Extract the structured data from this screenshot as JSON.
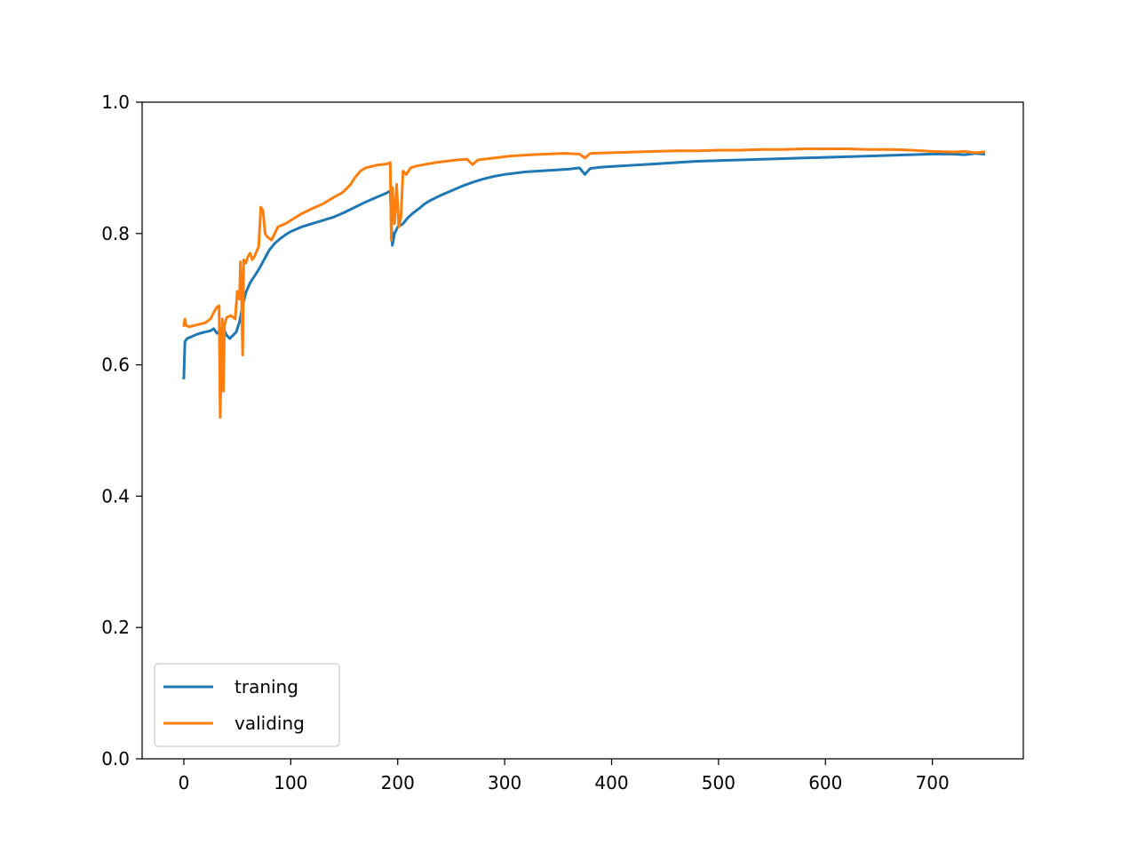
{
  "chart_data": {
    "type": "line",
    "title": "",
    "xlabel": "",
    "ylabel": "",
    "xlim": [
      -39,
      785
    ],
    "ylim": [
      0.0,
      1.0
    ],
    "x_ticks": [
      0,
      100,
      200,
      300,
      400,
      500,
      600,
      700
    ],
    "x_tick_labels": [
      "0",
      "100",
      "200",
      "300",
      "400",
      "500",
      "600",
      "700"
    ],
    "y_ticks": [
      0.0,
      0.2,
      0.4,
      0.6,
      0.8,
      1.0
    ],
    "y_tick_labels": [
      "0.0",
      "0.2",
      "0.4",
      "0.6",
      "0.8",
      "1.0"
    ],
    "grid": false,
    "legend_position": "lower-left",
    "series": [
      {
        "name": "traning",
        "color": "#1f77b4",
        "points": [
          [
            0,
            0.58
          ],
          [
            1,
            0.635
          ],
          [
            3,
            0.64
          ],
          [
            6,
            0.642
          ],
          [
            10,
            0.645
          ],
          [
            15,
            0.648
          ],
          [
            20,
            0.65
          ],
          [
            25,
            0.652
          ],
          [
            28,
            0.655
          ],
          [
            31,
            0.648
          ],
          [
            34,
            0.652
          ],
          [
            37,
            0.655
          ],
          [
            40,
            0.645
          ],
          [
            43,
            0.64
          ],
          [
            46,
            0.645
          ],
          [
            49,
            0.65
          ],
          [
            52,
            0.665
          ],
          [
            55,
            0.69
          ],
          [
            58,
            0.71
          ],
          [
            62,
            0.725
          ],
          [
            66,
            0.735
          ],
          [
            70,
            0.745
          ],
          [
            75,
            0.76
          ],
          [
            80,
            0.775
          ],
          [
            85,
            0.785
          ],
          [
            90,
            0.792
          ],
          [
            95,
            0.798
          ],
          [
            100,
            0.803
          ],
          [
            110,
            0.81
          ],
          [
            120,
            0.815
          ],
          [
            130,
            0.82
          ],
          [
            140,
            0.825
          ],
          [
            150,
            0.832
          ],
          [
            160,
            0.84
          ],
          [
            170,
            0.848
          ],
          [
            180,
            0.855
          ],
          [
            190,
            0.862
          ],
          [
            193,
            0.865
          ],
          [
            195,
            0.782
          ],
          [
            197,
            0.8
          ],
          [
            200,
            0.81
          ],
          [
            205,
            0.815
          ],
          [
            210,
            0.825
          ],
          [
            215,
            0.832
          ],
          [
            220,
            0.838
          ],
          [
            225,
            0.845
          ],
          [
            230,
            0.85
          ],
          [
            240,
            0.858
          ],
          [
            250,
            0.865
          ],
          [
            260,
            0.872
          ],
          [
            270,
            0.878
          ],
          [
            280,
            0.883
          ],
          [
            290,
            0.887
          ],
          [
            300,
            0.89
          ],
          [
            310,
            0.892
          ],
          [
            320,
            0.894
          ],
          [
            330,
            0.895
          ],
          [
            340,
            0.896
          ],
          [
            350,
            0.897
          ],
          [
            360,
            0.898
          ],
          [
            370,
            0.9
          ],
          [
            375,
            0.89
          ],
          [
            380,
            0.899
          ],
          [
            390,
            0.901
          ],
          [
            400,
            0.902
          ],
          [
            420,
            0.904
          ],
          [
            440,
            0.906
          ],
          [
            460,
            0.908
          ],
          [
            480,
            0.91
          ],
          [
            500,
            0.911
          ],
          [
            520,
            0.912
          ],
          [
            540,
            0.913
          ],
          [
            560,
            0.914
          ],
          [
            580,
            0.915
          ],
          [
            600,
            0.916
          ],
          [
            620,
            0.917
          ],
          [
            640,
            0.918
          ],
          [
            660,
            0.919
          ],
          [
            680,
            0.92
          ],
          [
            700,
            0.921
          ],
          [
            720,
            0.921
          ],
          [
            730,
            0.92
          ],
          [
            740,
            0.922
          ],
          [
            748,
            0.921
          ]
        ]
      },
      {
        "name": "validing",
        "color": "#ff7f0e",
        "points": [
          [
            0,
            0.66
          ],
          [
            1,
            0.67
          ],
          [
            2,
            0.66
          ],
          [
            5,
            0.658
          ],
          [
            10,
            0.66
          ],
          [
            15,
            0.662
          ],
          [
            20,
            0.664
          ],
          [
            25,
            0.67
          ],
          [
            28,
            0.68
          ],
          [
            31,
            0.688
          ],
          [
            33,
            0.69
          ],
          [
            34,
            0.52
          ],
          [
            35,
            0.6
          ],
          [
            36,
            0.67
          ],
          [
            37,
            0.56
          ],
          [
            38,
            0.66
          ],
          [
            40,
            0.672
          ],
          [
            44,
            0.675
          ],
          [
            48,
            0.67
          ],
          [
            50,
            0.712
          ],
          [
            52,
            0.7
          ],
          [
            53,
            0.757
          ],
          [
            54,
            0.705
          ],
          [
            55,
            0.615
          ],
          [
            56,
            0.76
          ],
          [
            58,
            0.755
          ],
          [
            60,
            0.765
          ],
          [
            62,
            0.77
          ],
          [
            64,
            0.76
          ],
          [
            66,
            0.765
          ],
          [
            70,
            0.78
          ],
          [
            72,
            0.84
          ],
          [
            74,
            0.835
          ],
          [
            76,
            0.8
          ],
          [
            78,
            0.795
          ],
          [
            82,
            0.79
          ],
          [
            85,
            0.8
          ],
          [
            88,
            0.81
          ],
          [
            95,
            0.815
          ],
          [
            100,
            0.82
          ],
          [
            110,
            0.83
          ],
          [
            120,
            0.838
          ],
          [
            130,
            0.845
          ],
          [
            140,
            0.855
          ],
          [
            148,
            0.862
          ],
          [
            152,
            0.868
          ],
          [
            156,
            0.875
          ],
          [
            160,
            0.885
          ],
          [
            165,
            0.895
          ],
          [
            170,
            0.9
          ],
          [
            180,
            0.904
          ],
          [
            190,
            0.906
          ],
          [
            193,
            0.908
          ],
          [
            194,
            0.79
          ],
          [
            195,
            0.87
          ],
          [
            197,
            0.815
          ],
          [
            199,
            0.875
          ],
          [
            201,
            0.81
          ],
          [
            203,
            0.825
          ],
          [
            205,
            0.895
          ],
          [
            208,
            0.89
          ],
          [
            212,
            0.9
          ],
          [
            218,
            0.903
          ],
          [
            225,
            0.905
          ],
          [
            235,
            0.908
          ],
          [
            245,
            0.91
          ],
          [
            255,
            0.912
          ],
          [
            265,
            0.913
          ],
          [
            270,
            0.905
          ],
          [
            275,
            0.912
          ],
          [
            285,
            0.914
          ],
          [
            295,
            0.916
          ],
          [
            305,
            0.918
          ],
          [
            315,
            0.919
          ],
          [
            325,
            0.92
          ],
          [
            340,
            0.921
          ],
          [
            355,
            0.922
          ],
          [
            370,
            0.921
          ],
          [
            375,
            0.915
          ],
          [
            380,
            0.922
          ],
          [
            400,
            0.923
          ],
          [
            420,
            0.924
          ],
          [
            440,
            0.925
          ],
          [
            460,
            0.926
          ],
          [
            480,
            0.926
          ],
          [
            500,
            0.927
          ],
          [
            520,
            0.927
          ],
          [
            540,
            0.928
          ],
          [
            560,
            0.928
          ],
          [
            580,
            0.929
          ],
          [
            600,
            0.929
          ],
          [
            620,
            0.929
          ],
          [
            640,
            0.928
          ],
          [
            660,
            0.928
          ],
          [
            680,
            0.927
          ],
          [
            700,
            0.925
          ],
          [
            720,
            0.924
          ],
          [
            730,
            0.925
          ],
          [
            740,
            0.923
          ],
          [
            748,
            0.924
          ]
        ]
      }
    ]
  }
}
